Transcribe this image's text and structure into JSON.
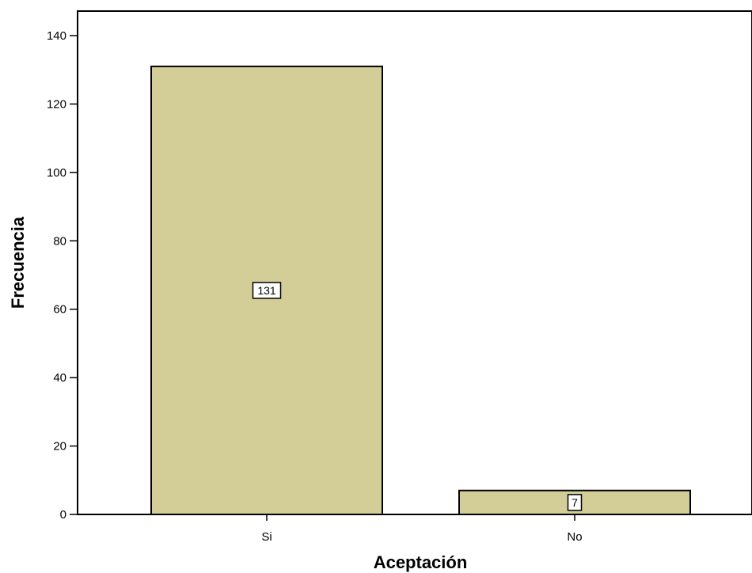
{
  "chart_data": {
    "type": "bar",
    "categories": [
      "Si",
      "No"
    ],
    "values": [
      131,
      7
    ],
    "data_labels": [
      "131",
      "7"
    ],
    "title": "",
    "xlabel": "Aceptación",
    "ylabel": "Frecuencia",
    "ylim": [
      0,
      140
    ],
    "yticks": [
      "0",
      "20",
      "40",
      "60",
      "80",
      "100",
      "120",
      "140"
    ],
    "grid": false,
    "legend": "none",
    "colors": {
      "bar_fill": "#d3cd98",
      "bar_stroke": "#000000"
    }
  }
}
